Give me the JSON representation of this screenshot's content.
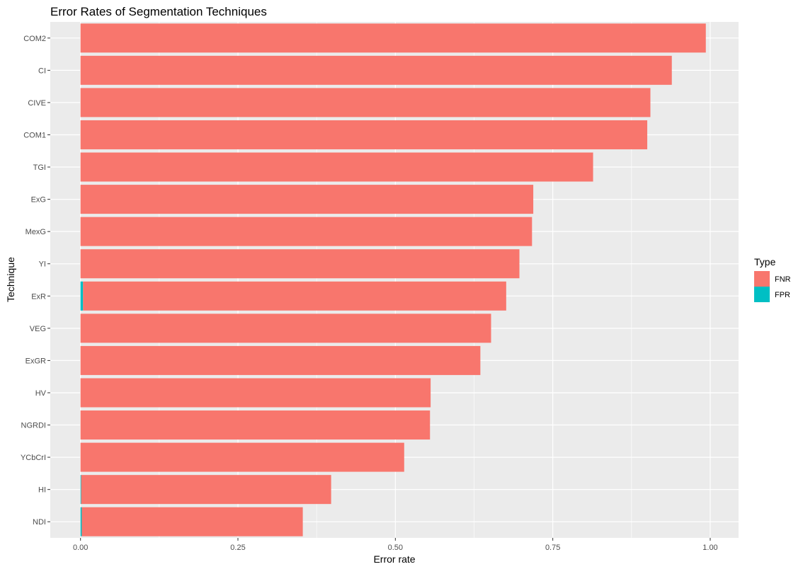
{
  "chart_data": {
    "type": "bar",
    "orientation": "horizontal",
    "stacked": true,
    "title": "Error Rates of Segmentation Techniques",
    "xlabel": "Error rate",
    "ylabel": "Technique",
    "xlim": [
      -0.048,
      1.045
    ],
    "x_ticks": [
      0,
      0.25,
      0.5,
      0.75,
      1
    ],
    "x_tick_labels": [
      "0.00",
      "0.25",
      "0.50",
      "0.75",
      "1.00"
    ],
    "grid": true,
    "legend_position": "right",
    "legend_title": "Type",
    "categories": [
      "COM2",
      "CI",
      "CIVE",
      "COM1",
      "TGI",
      "ExG",
      "MexG",
      "YI",
      "ExR",
      "VEG",
      "ExGR",
      "HV",
      "NGRDI",
      "YCbCrI",
      "HI",
      "NDI"
    ],
    "series": [
      {
        "name": "FPR",
        "color": "#00BFC4",
        "values": [
          0,
          0,
          0,
          0,
          0,
          0,
          0,
          0,
          0.004,
          0,
          0,
          0,
          0,
          0,
          0.001,
          0.002
        ]
      },
      {
        "name": "FNR",
        "color": "#F8766D",
        "values": [
          0.993,
          0.939,
          0.905,
          0.9,
          0.814,
          0.719,
          0.717,
          0.697,
          0.672,
          0.652,
          0.635,
          0.556,
          0.555,
          0.514,
          0.397,
          0.351
        ]
      }
    ]
  }
}
